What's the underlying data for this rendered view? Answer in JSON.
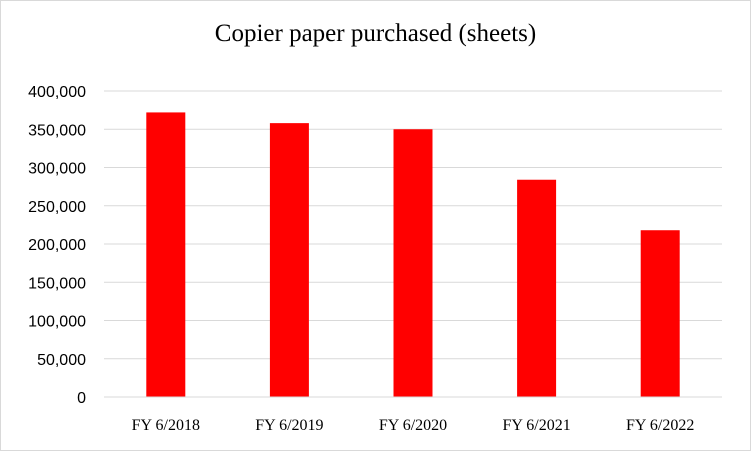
{
  "chart_data": {
    "type": "bar",
    "title": "Copier paper purchased (sheets)",
    "xlabel": "",
    "ylabel": "",
    "categories": [
      "FY 6/2018",
      "FY 6/2019",
      "FY 6/2020",
      "FY 6/2021",
      "FY 6/2022"
    ],
    "values": [
      372000,
      358000,
      350000,
      284000,
      218000
    ],
    "ylim": [
      0,
      400000
    ],
    "y_ticks": [
      0,
      50000,
      100000,
      150000,
      200000,
      250000,
      300000,
      350000,
      400000
    ],
    "y_tick_labels": [
      "0",
      "50,000",
      "100,000",
      "150,000",
      "200,000",
      "250,000",
      "300,000",
      "350,000",
      "400,000"
    ],
    "bar_color": "#ff0000",
    "gridline_color": "#d9d9d9",
    "grid": true,
    "legend": "none"
  }
}
